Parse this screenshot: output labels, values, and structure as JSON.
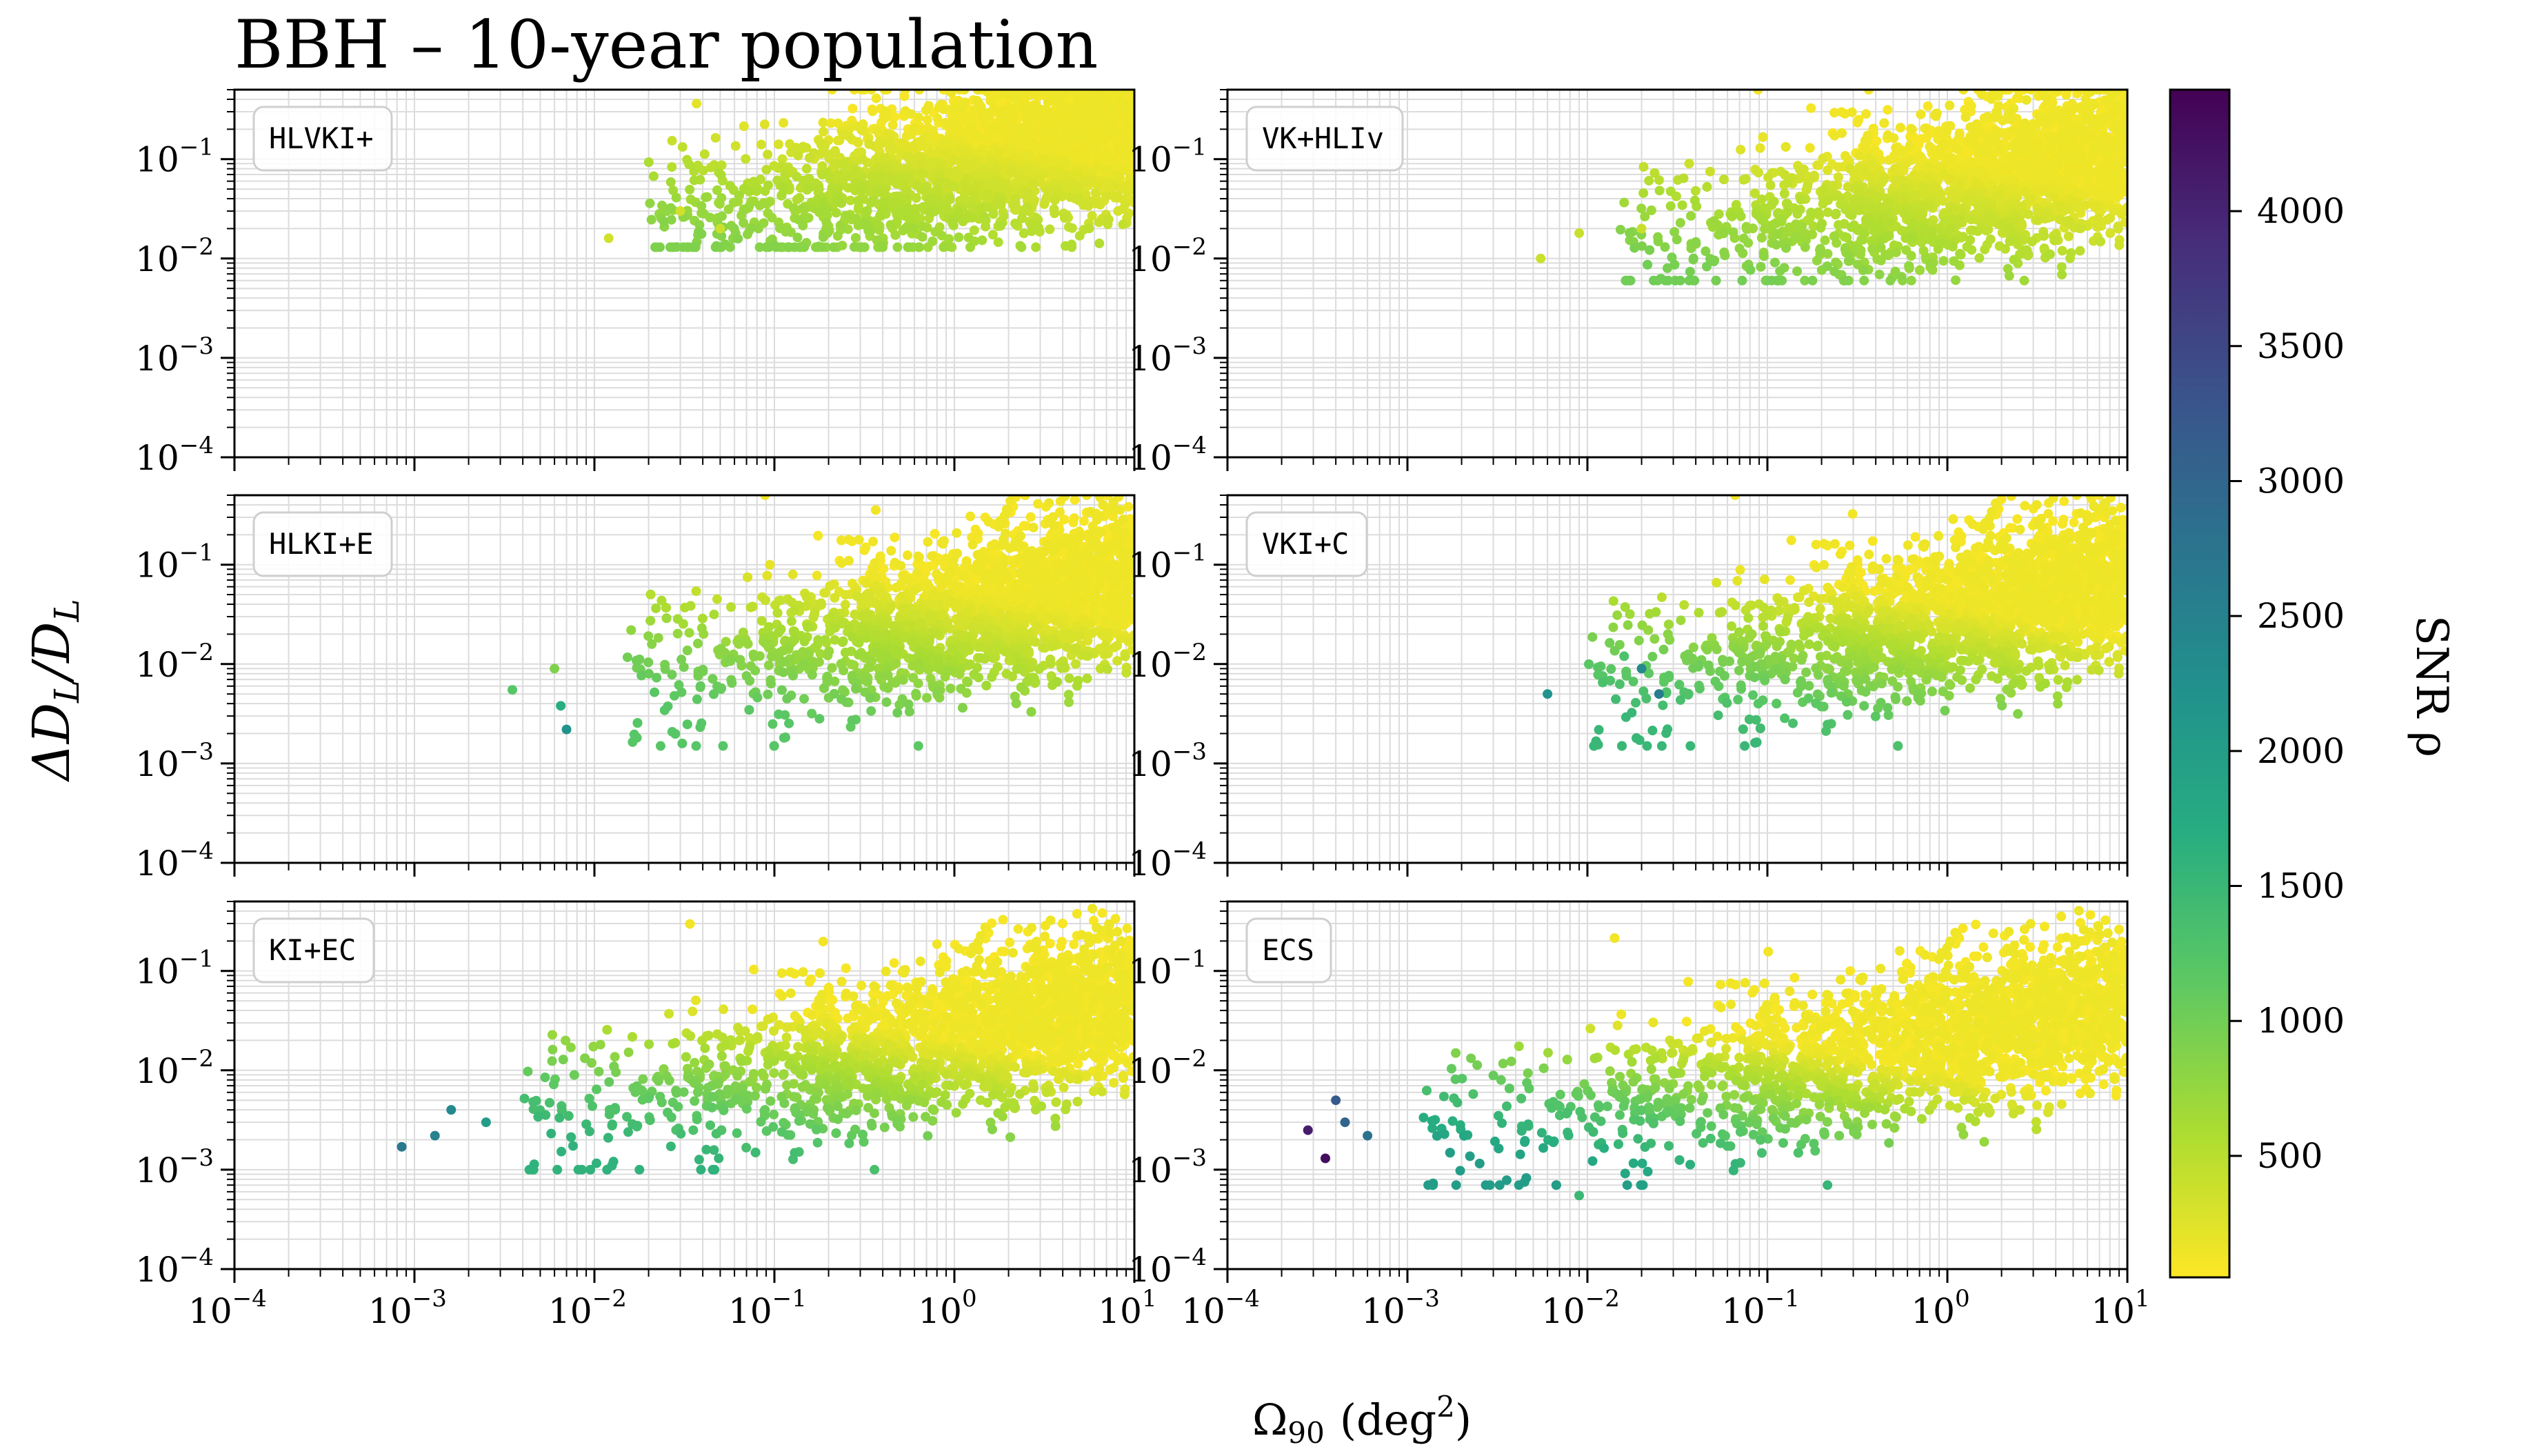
{
  "chart_data": {
    "type": "scatter",
    "title": "BBH – 10-year population",
    "xlabel_main": "Ω",
    "xlabel_sub": "90",
    "xlabel_unit_open": "(deg",
    "xlabel_unit_sup": "2",
    "xlabel_unit_close": ")",
    "ylabel_text": "ΔD",
    "ylabel_sub": "L",
    "ylabel_slash": "/D",
    "ylabel_sub2": "L",
    "x_scale": "log",
    "y_scale": "log",
    "xlim": [
      0.0001,
      10
    ],
    "ylim": [
      0.0001,
      0.5
    ],
    "grid": true,
    "x_ticks": [
      {
        "base": "10",
        "exp": "−4"
      },
      {
        "base": "10",
        "exp": "−3"
      },
      {
        "base": "10",
        "exp": "−2"
      },
      {
        "base": "10",
        "exp": "−1"
      },
      {
        "base": "10",
        "exp": "0"
      },
      {
        "base": "10",
        "exp": "1"
      }
    ],
    "y_ticks": [
      {
        "base": "10",
        "exp": "−4"
      },
      {
        "base": "10",
        "exp": "−3"
      },
      {
        "base": "10",
        "exp": "−2"
      },
      {
        "base": "10",
        "exp": "−1"
      }
    ],
    "colorbar": {
      "label": "SNR  ρ",
      "colormap": "viridis_r",
      "range": [
        50,
        4450
      ],
      "ticks": [
        "500",
        "1000",
        "1500",
        "2000",
        "2500",
        "3000",
        "3500",
        "4000"
      ]
    },
    "panels": [
      {
        "label": "HLVKI+",
        "cloud": {
          "xmin": 0.02,
          "xmax": 10,
          "ymin": 0.013,
          "ymax": 0.5,
          "center": [
            1.0,
            0.09
          ],
          "snr_max": 900
        },
        "sparse": [
          {
            "x": 0.012,
            "y": 0.016,
            "snr": 350
          },
          {
            "x": 0.03,
            "y": 0.03,
            "snr": 350
          },
          {
            "x": 0.05,
            "y": 0.02,
            "snr": 380
          }
        ]
      },
      {
        "label": "VK+HLIv",
        "cloud": {
          "xmin": 0.015,
          "xmax": 10,
          "ymin": 0.006,
          "ymax": 0.5,
          "center": [
            0.8,
            0.05
          ],
          "snr_max": 1000
        },
        "sparse": [
          {
            "x": 0.0055,
            "y": 0.01,
            "snr": 380
          },
          {
            "x": 0.009,
            "y": 0.018,
            "snr": 400
          },
          {
            "x": 0.02,
            "y": 0.02,
            "snr": 400
          }
        ]
      },
      {
        "label": "HLKI+E",
        "cloud": {
          "xmin": 0.015,
          "xmax": 10,
          "ymin": 0.0015,
          "ymax": 0.5,
          "center": [
            0.8,
            0.03
          ],
          "snr_max": 1200
        },
        "sparse": [
          {
            "x": 0.0035,
            "y": 0.0055,
            "snr": 1200
          },
          {
            "x": 0.007,
            "y": 0.0022,
            "snr": 2200
          },
          {
            "x": 0.006,
            "y": 0.009,
            "snr": 900
          },
          {
            "x": 0.0065,
            "y": 0.0038,
            "snr": 1700
          }
        ]
      },
      {
        "label": "VKI+C",
        "cloud": {
          "xmin": 0.01,
          "xmax": 10,
          "ymin": 0.0015,
          "ymax": 0.5,
          "center": [
            0.5,
            0.025
          ],
          "snr_max": 1500
        },
        "sparse": [
          {
            "x": 0.006,
            "y": 0.005,
            "snr": 2200
          },
          {
            "x": 0.02,
            "y": 0.009,
            "snr": 2400
          },
          {
            "x": 0.025,
            "y": 0.005,
            "snr": 2600
          },
          {
            "x": 0.016,
            "y": 0.012,
            "snr": 1300
          }
        ]
      },
      {
        "label": "KI+EC",
        "cloud": {
          "xmin": 0.004,
          "xmax": 10,
          "ymin": 0.001,
          "ymax": 0.5,
          "center": [
            0.3,
            0.015
          ],
          "snr_max": 1600
        },
        "sparse": [
          {
            "x": 0.00085,
            "y": 0.0017,
            "snr": 2700
          },
          {
            "x": 0.0013,
            "y": 0.0022,
            "snr": 2500
          },
          {
            "x": 0.0016,
            "y": 0.004,
            "snr": 2400
          },
          {
            "x": 0.0025,
            "y": 0.003,
            "snr": 2000
          }
        ]
      },
      {
        "label": "ECS",
        "cloud": {
          "xmin": 0.0012,
          "xmax": 10,
          "ymin": 0.0007,
          "ymax": 0.5,
          "center": [
            0.1,
            0.01
          ],
          "snr_max": 2000
        },
        "sparse": [
          {
            "x": 0.00028,
            "y": 0.0025,
            "snr": 4100
          },
          {
            "x": 0.00035,
            "y": 0.0013,
            "snr": 4300
          },
          {
            "x": 0.0004,
            "y": 0.005,
            "snr": 3200
          },
          {
            "x": 0.00045,
            "y": 0.003,
            "snr": 3000
          },
          {
            "x": 0.0006,
            "y": 0.0022,
            "snr": 2800
          },
          {
            "x": 0.009,
            "y": 0.00055,
            "snr": 1500
          }
        ]
      }
    ]
  }
}
